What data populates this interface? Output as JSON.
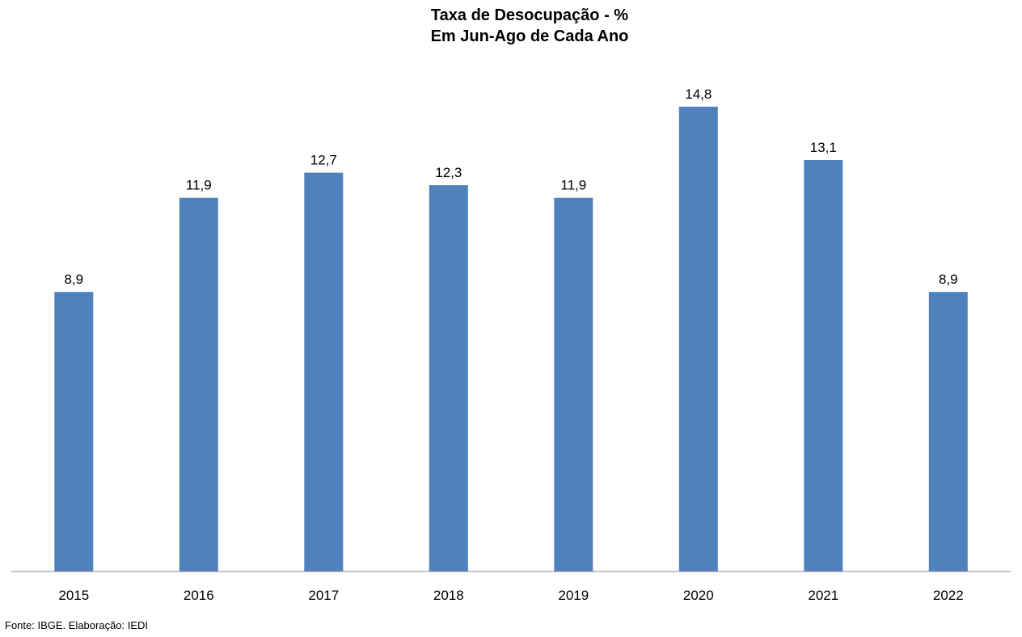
{
  "chart_data": {
    "type": "bar",
    "title": "Taxa de Desocupação - %",
    "subtitle": "Em Jun-Ago de Cada Ano",
    "categories": [
      "2015",
      "2016",
      "2017",
      "2018",
      "2019",
      "2020",
      "2021",
      "2022"
    ],
    "values": [
      8.9,
      11.9,
      12.7,
      12.3,
      11.9,
      14.8,
      13.1,
      8.9
    ],
    "value_labels": [
      "8,9",
      "11,9",
      "12,7",
      "12,3",
      "11,9",
      "14,8",
      "13,1",
      "8,9"
    ],
    "xlabel": "",
    "ylabel": "",
    "ylim": [
      0,
      16
    ],
    "grid": false,
    "legend": "none",
    "bar_color": "#4F81BD"
  },
  "source": "Fonte: IBGE. Elaboração: IEDI"
}
